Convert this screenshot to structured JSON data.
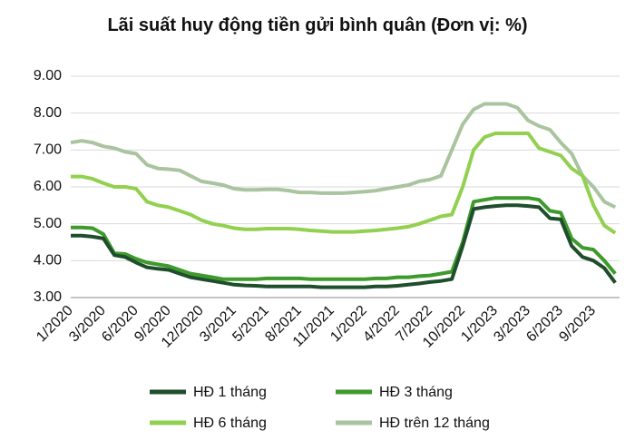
{
  "chart_data": {
    "type": "line",
    "title": "Lãi suất huy động tiền gửi bình quân (Đơn vị: %)",
    "categories": [
      "1/2020",
      null,
      null,
      "3/2020",
      null,
      null,
      "6/2020",
      null,
      null,
      "9/2020",
      null,
      null,
      "12/2020",
      null,
      null,
      "3/2021",
      null,
      null,
      "5/2021",
      null,
      null,
      "8/2021",
      null,
      null,
      "11/2021",
      null,
      null,
      "1/2022",
      null,
      null,
      "4/2022",
      null,
      null,
      "7/2022",
      null,
      null,
      "10/2022",
      null,
      null,
      "1/2023",
      null,
      null,
      "3/2023",
      null,
      null,
      "6/2023",
      null,
      null,
      "9/2023",
      null,
      null
    ],
    "series": [
      {
        "name": "HĐ 1 tháng",
        "color": "#1f4e2c",
        "values": [
          4.68,
          4.68,
          4.65,
          4.6,
          4.15,
          4.1,
          3.95,
          3.82,
          3.78,
          3.75,
          3.65,
          3.55,
          3.5,
          3.45,
          3.4,
          3.35,
          3.33,
          3.32,
          3.3,
          3.3,
          3.3,
          3.3,
          3.3,
          3.28,
          3.28,
          3.28,
          3.28,
          3.28,
          3.3,
          3.3,
          3.32,
          3.35,
          3.38,
          3.42,
          3.45,
          3.5,
          4.4,
          5.4,
          5.45,
          5.48,
          5.5,
          5.5,
          5.48,
          5.45,
          5.15,
          5.12,
          4.4,
          4.1,
          4.0,
          3.8,
          3.4
        ]
      },
      {
        "name": "HĐ 3 tháng",
        "color": "#3d9a2b",
        "values": [
          4.9,
          4.9,
          4.88,
          4.72,
          4.2,
          4.18,
          4.05,
          3.95,
          3.9,
          3.85,
          3.75,
          3.65,
          3.6,
          3.55,
          3.5,
          3.5,
          3.5,
          3.5,
          3.52,
          3.52,
          3.52,
          3.52,
          3.5,
          3.5,
          3.5,
          3.5,
          3.5,
          3.5,
          3.52,
          3.52,
          3.55,
          3.55,
          3.58,
          3.6,
          3.65,
          3.7,
          4.5,
          5.6,
          5.65,
          5.7,
          5.7,
          5.7,
          5.7,
          5.65,
          5.35,
          5.3,
          4.6,
          4.35,
          4.3,
          4.0,
          3.65
        ]
      },
      {
        "name": "HĐ 6 tháng",
        "color": "#92d050",
        "values": [
          6.28,
          6.28,
          6.22,
          6.1,
          6.0,
          6.0,
          5.95,
          5.6,
          5.5,
          5.45,
          5.35,
          5.25,
          5.1,
          5.0,
          4.95,
          4.88,
          4.85,
          4.85,
          4.87,
          4.87,
          4.87,
          4.85,
          4.82,
          4.8,
          4.78,
          4.78,
          4.78,
          4.8,
          4.82,
          4.85,
          4.88,
          4.92,
          5.0,
          5.1,
          5.2,
          5.25,
          6.0,
          7.0,
          7.35,
          7.45,
          7.45,
          7.45,
          7.45,
          7.05,
          6.95,
          6.85,
          6.5,
          6.3,
          5.5,
          4.95,
          4.75
        ]
      },
      {
        "name": "HĐ trên 12 tháng",
        "color": "#a9c49f",
        "values": [
          7.2,
          7.25,
          7.2,
          7.1,
          7.05,
          6.95,
          6.9,
          6.6,
          6.5,
          6.48,
          6.45,
          6.3,
          6.15,
          6.1,
          6.05,
          5.95,
          5.92,
          5.92,
          5.93,
          5.93,
          5.9,
          5.85,
          5.85,
          5.83,
          5.83,
          5.83,
          5.85,
          5.87,
          5.9,
          5.95,
          6.0,
          6.05,
          6.15,
          6.2,
          6.3,
          7.0,
          7.7,
          8.1,
          8.25,
          8.25,
          8.25,
          8.15,
          7.8,
          7.65,
          7.55,
          7.2,
          6.9,
          6.3,
          6.0,
          5.6,
          5.45
        ]
      }
    ],
    "ylim": [
      3,
      9
    ],
    "yticks": [
      {
        "value": 3,
        "label": "3.00"
      },
      {
        "value": 4,
        "label": "4.00"
      },
      {
        "value": 5,
        "label": "5.00"
      },
      {
        "value": 6,
        "label": "6.00"
      },
      {
        "value": 7,
        "label": "7.00"
      },
      {
        "value": 8,
        "label": "8.00"
      },
      {
        "value": 9,
        "label": "9.00"
      }
    ],
    "grid": true,
    "legend": "bottom"
  }
}
